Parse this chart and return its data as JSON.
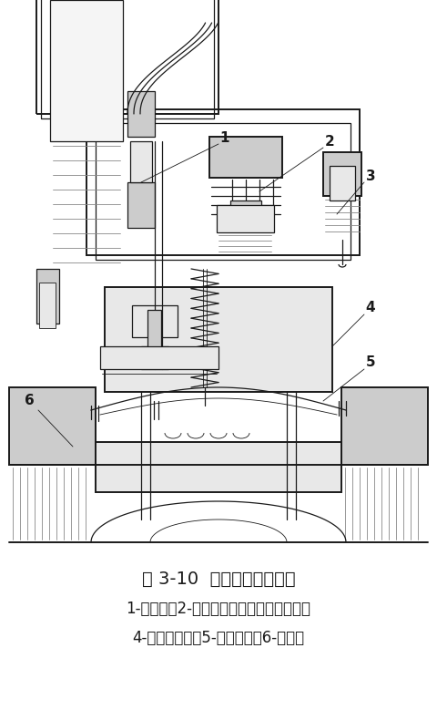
{
  "title": "图 3-10  电磁阀结构示意图",
  "caption_line1": "1-电磁头；2-流量调节手柄；外排气螺丝；",
  "caption_line2": "4-电磁阀上腔；5-橡皮隔膜；6-导流孔",
  "bg_color": "#ffffff",
  "lc": "#1a1a1a",
  "lc_med": "#444444",
  "lc_light": "#888888",
  "fc_light": "#e8e8e8",
  "fc_mid": "#cccccc",
  "fc_dark": "#aaaaaa",
  "title_fontsize": 14,
  "caption_fontsize": 12,
  "fig_width": 4.8,
  "fig_height": 7.9,
  "dpi": 100
}
